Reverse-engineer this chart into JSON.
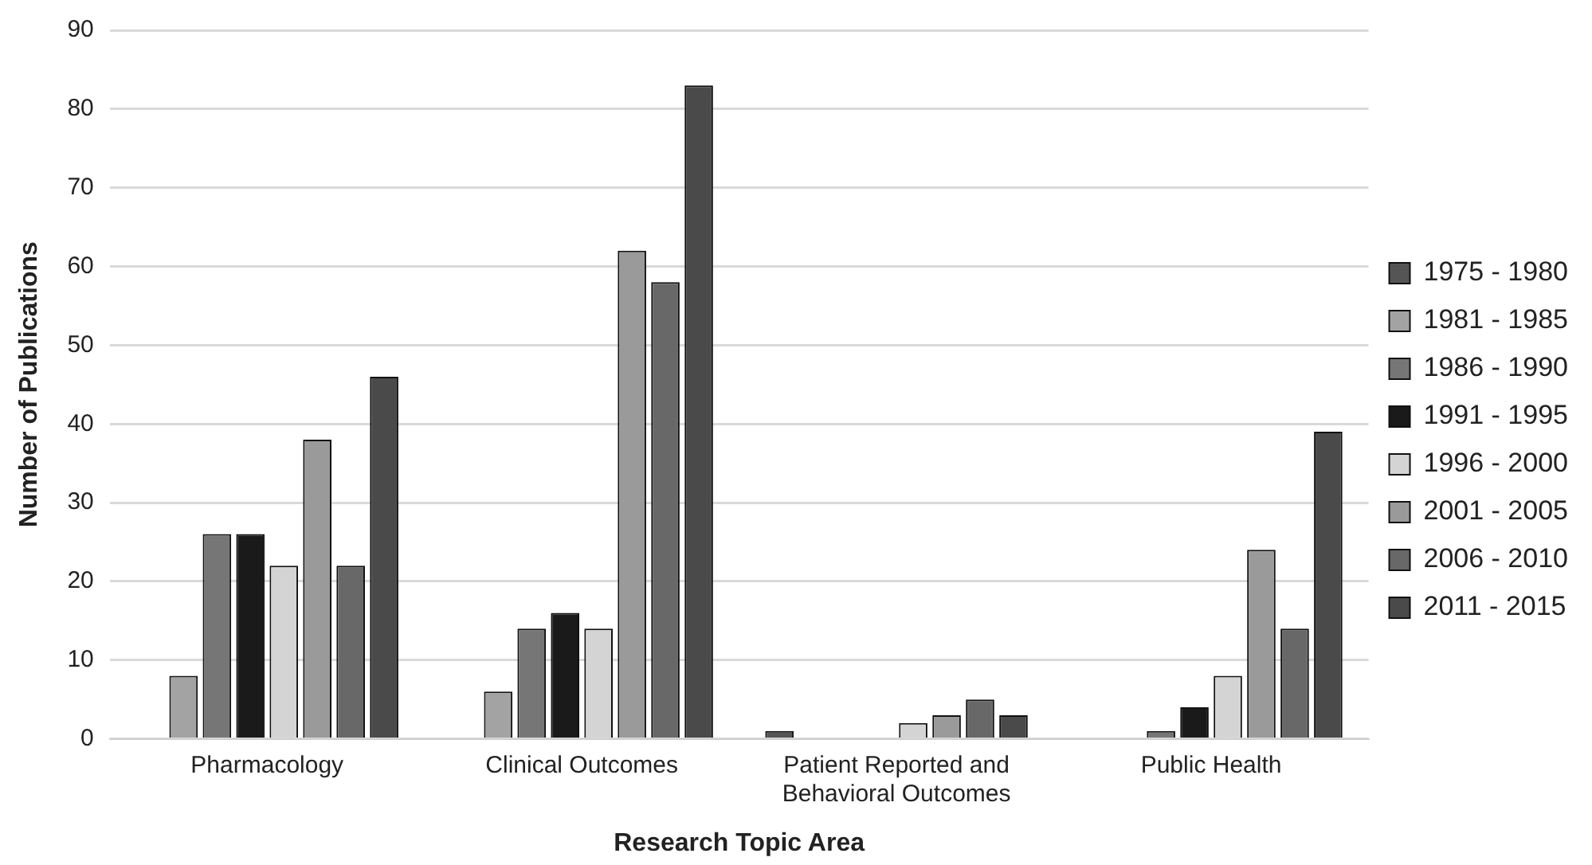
{
  "chart_data": {
    "type": "bar",
    "xlabel": "Research Topic Area",
    "ylabel": "Number of Publications",
    "categories": [
      "Pharmacology",
      "Clinical Outcomes",
      "Patient Reported and\nBehavioral Outcomes",
      "Public Health"
    ],
    "series": [
      {
        "name": "1975 - 1980",
        "color": "#555555",
        "values": [
          0,
          0,
          1,
          0
        ]
      },
      {
        "name": "1981 - 1985",
        "color": "#a3a3a3",
        "values": [
          8,
          6,
          0,
          0
        ]
      },
      {
        "name": "1986 - 1990",
        "color": "#767676",
        "values": [
          26,
          14,
          0,
          1
        ]
      },
      {
        "name": "1991 - 1995",
        "color": "#1a1a1a",
        "values": [
          26,
          16,
          0,
          4
        ]
      },
      {
        "name": "1996 - 2000",
        "color": "#d4d4d4",
        "values": [
          22,
          14,
          2,
          8
        ]
      },
      {
        "name": "2001 - 2005",
        "color": "#9a9a9a",
        "values": [
          38,
          62,
          3,
          24
        ]
      },
      {
        "name": "2006 - 2010",
        "color": "#686868",
        "values": [
          22,
          58,
          5,
          14
        ]
      },
      {
        "name": "2011 - 2015",
        "color": "#4a4a4a",
        "values": [
          46,
          83,
          3,
          39
        ]
      }
    ],
    "ylim": [
      0,
      90
    ],
    "yticks": [
      0,
      10,
      20,
      30,
      40,
      50,
      60,
      70,
      80,
      90
    ],
    "grid": "y",
    "legend": "right"
  }
}
